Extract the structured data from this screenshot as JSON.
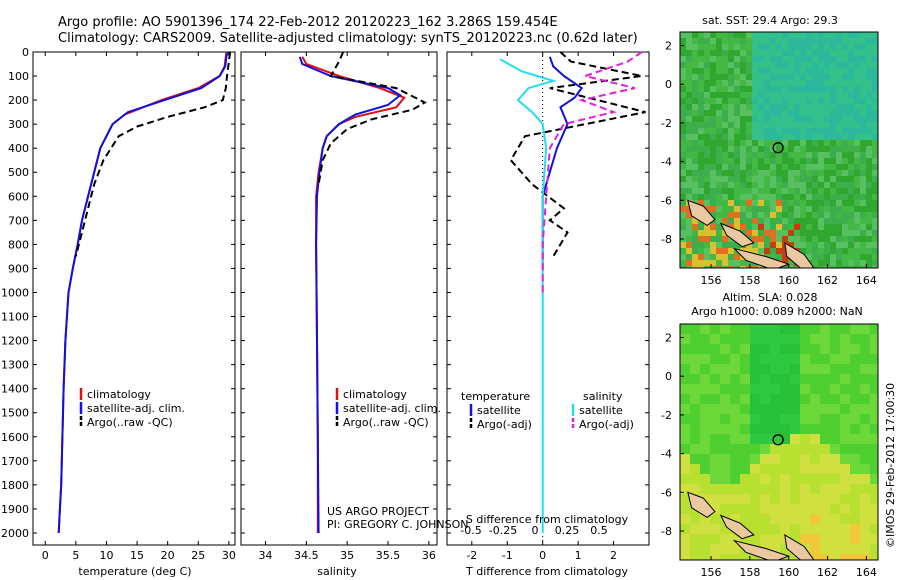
{
  "header": {
    "line1": "Argo profile: AO 5901396_174 22-Feb-2012 20120223_162 3.286S 159.454E",
    "line2": "Climatology: CARS2009. Satellite-adjusted climatology: synTS_20120223.nc (0.62d later)"
  },
  "colors": {
    "climatology": "#e01010",
    "satellite": "#1010e0",
    "argo": "#000000",
    "sat_salinity": "#22ddee",
    "argo_salinity": "#e020e0"
  },
  "depth_axis": {
    "ticks": [
      0,
      100,
      200,
      300,
      400,
      500,
      600,
      700,
      800,
      900,
      1000,
      1100,
      1200,
      1300,
      1400,
      1500,
      1600,
      1700,
      1800,
      1900,
      2000
    ],
    "range": [
      0,
      2050
    ]
  },
  "chart_data": [
    {
      "id": "temperature",
      "type": "line",
      "xlabel": "temperature (deg C)",
      "xlim": [
        -2,
        31
      ],
      "xticks": [
        0,
        5,
        10,
        15,
        20,
        25,
        30
      ],
      "legend": [
        "climatology",
        "satellite-adj. clim.",
        "Argo(..raw -QC)"
      ],
      "series": [
        {
          "name": "climatology",
          "color": "#e01010",
          "dash": false,
          "x": [
            29.6,
            29.5,
            29.3,
            28.5,
            25,
            19,
            13,
            11,
            9,
            8,
            7,
            6,
            5.3,
            4.5,
            3.8,
            3.3,
            3,
            2.8,
            2.6,
            2.4,
            2.2
          ],
          "y": [
            0,
            20,
            60,
            100,
            150,
            200,
            260,
            300,
            400,
            500,
            600,
            700,
            800,
            900,
            1000,
            1200,
            1400,
            1600,
            1800,
            1900,
            2000
          ]
        },
        {
          "name": "satellite-adj. clim.",
          "color": "#1010e0",
          "dash": false,
          "x": [
            29.8,
            29.6,
            29.4,
            28.5,
            25.5,
            19.5,
            13.5,
            11,
            9,
            8,
            7,
            6,
            5.3,
            4.5,
            3.8,
            3.3,
            3,
            2.8,
            2.6,
            2.4,
            2.2
          ],
          "y": [
            0,
            20,
            60,
            100,
            150,
            200,
            250,
            300,
            400,
            500,
            600,
            700,
            800,
            900,
            1000,
            1200,
            1400,
            1600,
            1800,
            1900,
            2000
          ]
        },
        {
          "name": "Argo(..raw -QC)",
          "color": "#000000",
          "dash": true,
          "x": [
            30.2,
            30,
            29.7,
            29.5,
            29,
            26,
            20,
            15,
            12,
            9.5,
            8,
            7,
            6,
            5
          ],
          "y": [
            0,
            40,
            100,
            150,
            200,
            230,
            270,
            310,
            350,
            450,
            550,
            650,
            750,
            850
          ]
        }
      ]
    },
    {
      "id": "salinity",
      "type": "line",
      "xlabel": "salinity",
      "xlim": [
        33.7,
        36.1
      ],
      "xticks": [
        34,
        34.5,
        35,
        35.5,
        36
      ],
      "xticklabels": [
        "34",
        "34.5",
        "35",
        "35.5",
        "36"
      ],
      "legend": [
        "climatology",
        "satellite-adj. clim.",
        "Argo(..raw -QC)"
      ],
      "series": [
        {
          "name": "climatology",
          "color": "#e01010",
          "dash": false,
          "x": [
            34.45,
            34.5,
            34.9,
            35.4,
            35.7,
            35.6,
            35.1,
            34.9,
            34.75,
            34.7,
            34.65,
            34.62,
            34.62,
            34.63,
            34.64,
            34.64
          ],
          "y": [
            20,
            50,
            100,
            150,
            190,
            230,
            270,
            300,
            350,
            400,
            500,
            600,
            800,
            1200,
            1600,
            2000
          ]
        },
        {
          "name": "satellite-adj. clim.",
          "color": "#1010e0",
          "dash": false,
          "x": [
            34.42,
            34.45,
            34.8,
            35.5,
            35.65,
            35.5,
            35.1,
            34.9,
            34.75,
            34.7,
            34.66,
            34.63,
            34.62,
            34.63,
            34.64,
            34.65
          ],
          "y": [
            20,
            50,
            100,
            150,
            180,
            220,
            260,
            300,
            350,
            400,
            500,
            600,
            800,
            1200,
            1600,
            2000
          ]
        },
        {
          "name": "Argo(..raw -QC)",
          "color": "#000000",
          "dash": true,
          "x": [
            34.95,
            34.9,
            34.8,
            35.6,
            35.95,
            35.8,
            35.3,
            35,
            34.8,
            34.7,
            34.65
          ],
          "y": [
            0,
            40,
            100,
            150,
            210,
            240,
            280,
            320,
            380,
            450,
            550
          ]
        }
      ]
    },
    {
      "id": "difference",
      "type": "line",
      "xlabel": "T difference from climatology",
      "xlabel_top": "S difference from climatology",
      "xlim": [
        -2.7,
        3
      ],
      "xticks": [
        -2,
        -1,
        0,
        1,
        2
      ],
      "xticks_top": [
        "-0.5",
        "-0.25",
        "0",
        "0.25",
        "0.5"
      ],
      "legend_titles": [
        "temperature",
        "salinity"
      ],
      "legend": [
        "satellite",
        "Argo(-adj)",
        "satellite",
        "Argo(-adj)"
      ],
      "series": [
        {
          "name": "T satellite",
          "color": "#1010e0",
          "dash": false,
          "x": [
            0.2,
            0.3,
            0.6,
            1.1,
            0.9,
            0.5,
            0.7,
            0.4,
            0.2,
            0,
            0,
            0
          ],
          "y": [
            20,
            60,
            100,
            150,
            190,
            230,
            300,
            400,
            500,
            600,
            800,
            900
          ]
        },
        {
          "name": "T Argo(-adj)",
          "color": "#000000",
          "dash": true,
          "x": [
            0.5,
            0.8,
            2.8,
            0.2,
            2.9,
            -0.5,
            -0.9,
            -0.3,
            0.6,
            0.2,
            0.7,
            0.3
          ],
          "y": [
            0,
            40,
            100,
            150,
            250,
            350,
            450,
            550,
            650,
            700,
            750,
            850
          ]
        },
        {
          "name": "S satellite",
          "color": "#22ddee",
          "dash": false,
          "x": [
            -1.2,
            -0.6,
            0.3,
            -0.4,
            -0.7,
            -0.3,
            0,
            0.1,
            0,
            0,
            0,
            0,
            0
          ],
          "y": [
            30,
            80,
            120,
            150,
            200,
            250,
            300,
            400,
            600,
            800,
            1200,
            1600,
            2000
          ]
        },
        {
          "name": "S Argo(-adj)",
          "color": "#e020e0",
          "dash": true,
          "x": [
            2.8,
            2.4,
            1.2,
            2.6,
            1.1,
            2.0,
            0.6,
            0.2,
            0.1,
            0,
            0
          ],
          "y": [
            0,
            40,
            100,
            150,
            200,
            250,
            300,
            400,
            600,
            800,
            1000
          ]
        }
      ]
    },
    {
      "id": "sst_map",
      "type": "heatmap",
      "title": "sat. SST: 29.4  Argo: 29.3",
      "xticks": [
        156,
        158,
        160,
        162,
        164
      ],
      "yticks": [
        2,
        0,
        -2,
        -4,
        -6,
        -8
      ],
      "xlim": [
        154.4,
        164.6
      ],
      "ylim": [
        -9.5,
        2.7
      ],
      "profile_location": {
        "lon": 159.454,
        "lat": -3.286
      }
    },
    {
      "id": "sla_map",
      "type": "heatmap",
      "title1": "Altim. SLA: 0.028",
      "title2": "Argo h1000: 0.089 h2000: NaN",
      "xticks": [
        156,
        158,
        160,
        162,
        164
      ],
      "yticks": [
        2,
        0,
        -2,
        -4,
        -6,
        -8
      ],
      "xlim": [
        154.4,
        164.6
      ],
      "ylim": [
        -9.5,
        2.7
      ],
      "profile_location": {
        "lon": 159.454,
        "lat": -3.286
      }
    }
  ],
  "credits": {
    "project": "US ARGO PROJECT",
    "pi": "PI: GREGORY C. JOHNSON",
    "watermark": "©IMOS 29-Feb-2012 17:00:30"
  }
}
